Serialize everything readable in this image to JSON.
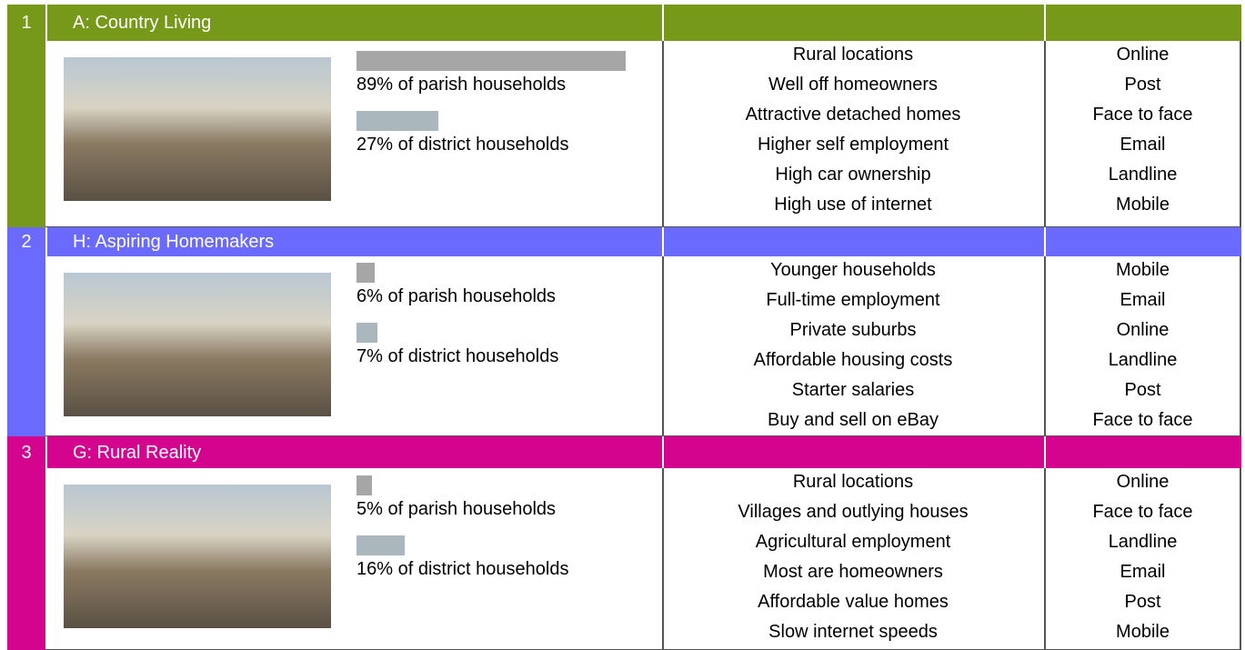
{
  "groups": [
    {
      "number": "1",
      "title": "A: Country Living",
      "color": "#76991a",
      "parish": {
        "value": 89,
        "label": "89% of parish households"
      },
      "district": {
        "value": 27,
        "label": "27% of district households"
      },
      "features": [
        "Rural locations",
        "Well off homeowners",
        "Attractive detached homes",
        "Higher self employment",
        "High car ownership",
        "High use of internet"
      ],
      "channels": [
        "Online",
        "Post",
        "Face to face",
        "Email",
        "Landline",
        "Mobile"
      ]
    },
    {
      "number": "2",
      "title": "H: Aspiring Homemakers",
      "color": "#6a6aff",
      "parish": {
        "value": 6,
        "label": "6% of parish households"
      },
      "district": {
        "value": 7,
        "label": "7% of district households"
      },
      "features": [
        "Younger households",
        "Full-time employment",
        "Private suburbs",
        "Affordable housing costs",
        "Starter salaries",
        "Buy and sell on eBay"
      ],
      "channels": [
        "Mobile",
        "Email",
        "Online",
        "Landline",
        "Post",
        "Face to face"
      ]
    },
    {
      "number": "3",
      "title": "G: Rural Reality",
      "color": "#d5048f",
      "parish": {
        "value": 5,
        "label": "5% of parish households"
      },
      "district": {
        "value": 16,
        "label": "16% of district households"
      },
      "features": [
        "Rural locations",
        "Villages and outlying houses",
        "Agricultural employment",
        "Most are homeowners",
        "Affordable value homes",
        "Slow internet speeds"
      ],
      "channels": [
        "Online",
        "Face to face",
        "Landline",
        "Email",
        "Post",
        "Mobile"
      ]
    }
  ]
}
